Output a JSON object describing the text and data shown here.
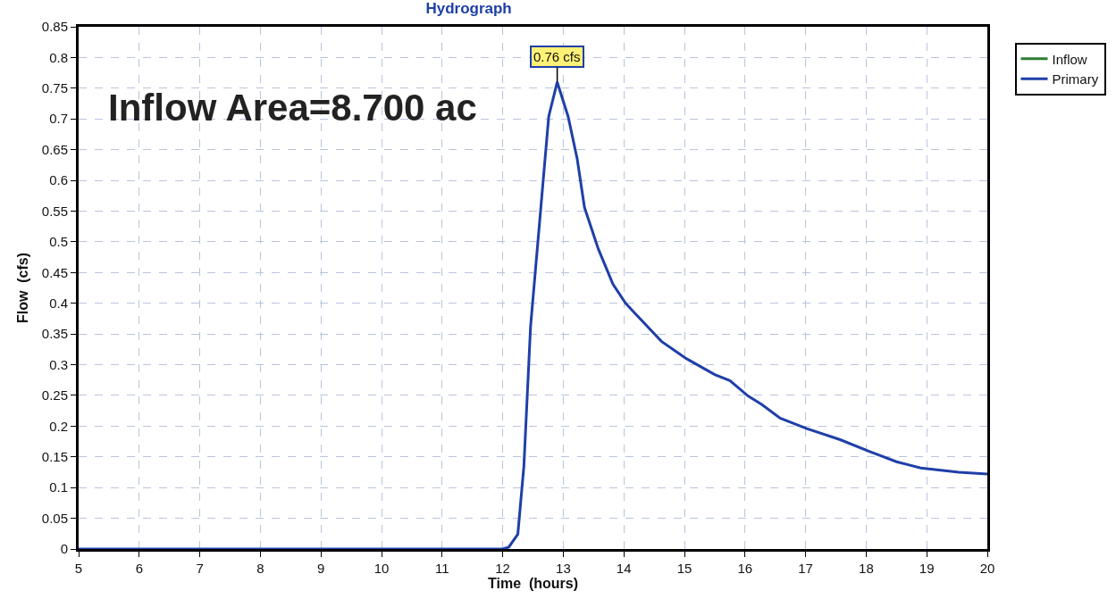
{
  "chart_data": {
    "type": "line",
    "title": "Hydrograph",
    "xlabel": "Time  (hours)",
    "ylabel": "Flow  (cfs)",
    "x": [
      5,
      12.0,
      12.1,
      12.25,
      12.35,
      12.46,
      12.61,
      12.76,
      12.9,
      13.08,
      13.23,
      13.35,
      13.58,
      13.82,
      14.03,
      14.17,
      14.62,
      15.03,
      15.5,
      15.75,
      16.05,
      16.28,
      16.58,
      17.02,
      17.57,
      18.05,
      18.5,
      18.9,
      19.53,
      20
    ],
    "series": [
      {
        "name": "Inflow",
        "color": "#2e7d32",
        "values": [
          null,
          null,
          null,
          null,
          null,
          null,
          null,
          null,
          null,
          null,
          null,
          null,
          null,
          null,
          null,
          null,
          null,
          null,
          null,
          null,
          null,
          null,
          null,
          null,
          null,
          null,
          null,
          null,
          null,
          null
        ]
      },
      {
        "name": "Primary",
        "color": "#1f3fa8",
        "values": [
          0,
          0,
          0.003,
          0.024,
          0.135,
          0.362,
          0.533,
          0.704,
          0.76,
          0.704,
          0.635,
          0.556,
          0.488,
          0.431,
          0.4,
          0.385,
          0.338,
          0.31,
          0.284,
          0.274,
          0.249,
          0.235,
          0.213,
          0.196,
          0.178,
          0.159,
          0.142,
          0.132,
          0.125,
          0.122
        ]
      }
    ],
    "xlim": [
      5,
      20
    ],
    "xticks": [
      5,
      6,
      7,
      8,
      9,
      10,
      11,
      12,
      13,
      14,
      15,
      16,
      17,
      18,
      19,
      20
    ],
    "ylim": [
      0,
      0.85
    ],
    "yticks": [
      0,
      0.05,
      0.1,
      0.15,
      0.2,
      0.25,
      0.3,
      0.35,
      0.4,
      0.45,
      0.5,
      0.55,
      0.6,
      0.65,
      0.7,
      0.75,
      0.8,
      0.85
    ],
    "annotations": [
      "Inflow Area=8.700 ac",
      {
        "text": "0.76 cfs",
        "x": 12.9,
        "y": 0.76
      }
    ],
    "grid": true,
    "legend": "top right",
    "marker": "none",
    "line_style": "solid"
  }
}
